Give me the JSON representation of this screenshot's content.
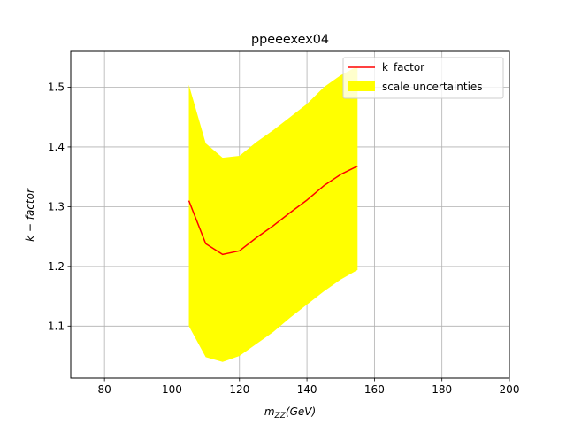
{
  "chart_data": {
    "type": "line",
    "title": "ppeeexex04",
    "xlabel": "m_ZZ(GeV)",
    "ylabel": "k − factor",
    "xlim": [
      70,
      200
    ],
    "ylim": [
      1.013,
      1.56
    ],
    "xticks": [
      80,
      100,
      120,
      140,
      160,
      180,
      200
    ],
    "yticks": [
      1.1,
      1.2,
      1.3,
      1.4,
      1.5
    ],
    "xtick_labels": [
      "80",
      "100",
      "120",
      "140",
      "160",
      "180",
      "200"
    ],
    "ytick_labels": [
      "1.1",
      "1.2",
      "1.3",
      "1.4",
      "1.5"
    ],
    "grid": true,
    "legend_position": "top-right",
    "series": [
      {
        "name": "k_factor",
        "kind": "line",
        "color": "#ff0000",
        "x": [
          105,
          110,
          115,
          120,
          125,
          130,
          135,
          140,
          145,
          150,
          155
        ],
        "y": [
          1.31,
          1.238,
          1.22,
          1.226,
          1.248,
          1.268,
          1.29,
          1.311,
          1.335,
          1.354,
          1.368
        ]
      },
      {
        "name": "scale uncertainties",
        "kind": "band",
        "color": "#ffff00",
        "x": [
          105,
          110,
          115,
          120,
          125,
          130,
          135,
          140,
          145,
          150,
          155
        ],
        "lower": [
          1.1,
          1.048,
          1.04,
          1.05,
          1.07,
          1.09,
          1.114,
          1.136,
          1.158,
          1.178,
          1.194
        ],
        "upper": [
          1.504,
          1.406,
          1.382,
          1.385,
          1.408,
          1.428,
          1.45,
          1.472,
          1.5,
          1.52,
          1.535
        ]
      }
    ]
  }
}
